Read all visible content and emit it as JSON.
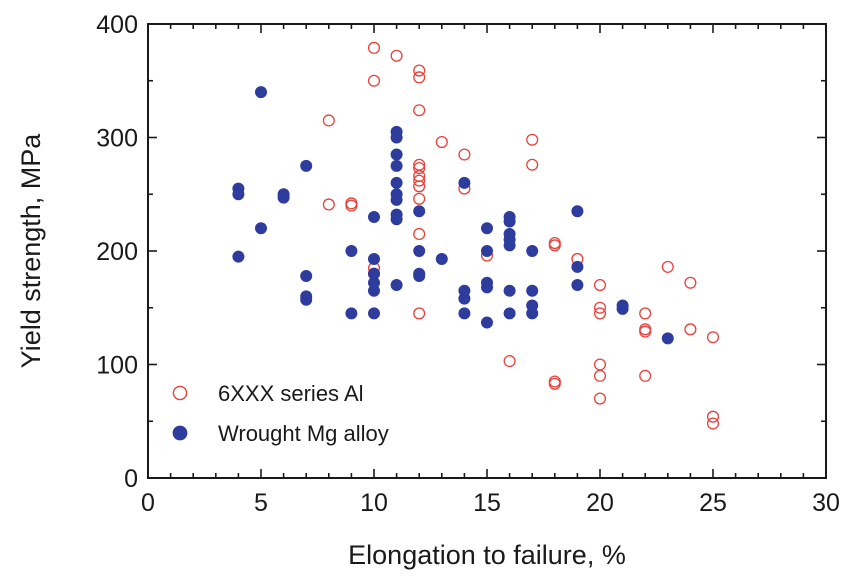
{
  "chart_data": {
    "type": "scatter",
    "xlabel": "Elongation to failure, %",
    "ylabel": "Yield strength, MPa",
    "xlim": [
      0,
      30
    ],
    "ylim": [
      0,
      400
    ],
    "xticks": [
      0,
      5,
      10,
      15,
      20,
      25,
      30
    ],
    "yticks": [
      0,
      100,
      200,
      300,
      400
    ],
    "grid": false,
    "legend_position": "bottom-left",
    "series": [
      {
        "name": "6XXX series Al",
        "marker": "open-circle",
        "color": "#e8403a",
        "points": [
          [
            8,
            315
          ],
          [
            8,
            241
          ],
          [
            9,
            240
          ],
          [
            9,
            242
          ],
          [
            10,
            379
          ],
          [
            10,
            350
          ],
          [
            10,
            185
          ],
          [
            10,
            180
          ],
          [
            11,
            372
          ],
          [
            12,
            359
          ],
          [
            12,
            353
          ],
          [
            12,
            324
          ],
          [
            12,
            276
          ],
          [
            12,
            273
          ],
          [
            12,
            266
          ],
          [
            12,
            262
          ],
          [
            12,
            257
          ],
          [
            12,
            246
          ],
          [
            12,
            215
          ],
          [
            12,
            145
          ],
          [
            13,
            296
          ],
          [
            14,
            285
          ],
          [
            14,
            255
          ],
          [
            15,
            196
          ],
          [
            16,
            103
          ],
          [
            17,
            298
          ],
          [
            17,
            276
          ],
          [
            18,
            207
          ],
          [
            18,
            205
          ],
          [
            18,
            85
          ],
          [
            18,
            83
          ],
          [
            19,
            193
          ],
          [
            20,
            170
          ],
          [
            20,
            150
          ],
          [
            20,
            145
          ],
          [
            20,
            100
          ],
          [
            20,
            90
          ],
          [
            20,
            70
          ],
          [
            22,
            145
          ],
          [
            22,
            131
          ],
          [
            22,
            129
          ],
          [
            22,
            90
          ],
          [
            23,
            186
          ],
          [
            24,
            172
          ],
          [
            24,
            131
          ],
          [
            25,
            124
          ],
          [
            25,
            54
          ],
          [
            25,
            48
          ]
        ]
      },
      {
        "name": "Wrought Mg alloy",
        "marker": "filled-circle",
        "color": "#2e3c9e",
        "points": [
          [
            4,
            255
          ],
          [
            4,
            250
          ],
          [
            4,
            195
          ],
          [
            5,
            340
          ],
          [
            5,
            220
          ],
          [
            6,
            250
          ],
          [
            6,
            247
          ],
          [
            7,
            275
          ],
          [
            7,
            178
          ],
          [
            7,
            160
          ],
          [
            7,
            157
          ],
          [
            9,
            200
          ],
          [
            9,
            145
          ],
          [
            10,
            230
          ],
          [
            10,
            193
          ],
          [
            10,
            180
          ],
          [
            10,
            172
          ],
          [
            10,
            165
          ],
          [
            10,
            145
          ],
          [
            11,
            305
          ],
          [
            11,
            300
          ],
          [
            11,
            285
          ],
          [
            11,
            275
          ],
          [
            11,
            260
          ],
          [
            11,
            250
          ],
          [
            11,
            245
          ],
          [
            11,
            232
          ],
          [
            11,
            228
          ],
          [
            11,
            170
          ],
          [
            12,
            235
          ],
          [
            12,
            200
          ],
          [
            12,
            180
          ],
          [
            12,
            178
          ],
          [
            13,
            193
          ],
          [
            14,
            260
          ],
          [
            14,
            165
          ],
          [
            14,
            158
          ],
          [
            14,
            145
          ],
          [
            15,
            220
          ],
          [
            15,
            200
          ],
          [
            15,
            172
          ],
          [
            15,
            168
          ],
          [
            15,
            137
          ],
          [
            16,
            230
          ],
          [
            16,
            226
          ],
          [
            16,
            215
          ],
          [
            16,
            210
          ],
          [
            16,
            205
          ],
          [
            16,
            165
          ],
          [
            16,
            145
          ],
          [
            17,
            200
          ],
          [
            17,
            165
          ],
          [
            17,
            152
          ],
          [
            17,
            145
          ],
          [
            19,
            235
          ],
          [
            19,
            186
          ],
          [
            19,
            170
          ],
          [
            21,
            152
          ],
          [
            21,
            149
          ],
          [
            23,
            123
          ]
        ]
      }
    ]
  }
}
